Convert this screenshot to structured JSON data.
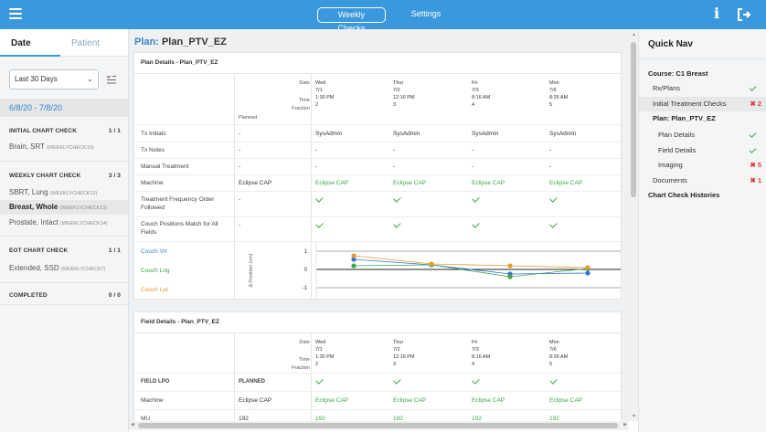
{
  "topbar": {
    "tabs": [
      "Weekly Checks",
      "Settings"
    ]
  },
  "left": {
    "tabs": {
      "date": "Date",
      "patient": "Patient"
    },
    "range_select": "Last 30 Days",
    "date_range": "6/8/20 - 7/8/20",
    "groups": [
      {
        "title": "INITIAL CHART CHECK",
        "count": "1 / 1",
        "items": [
          {
            "name": "Brain, SRT",
            "code": "(WEEKLYCHECK15)"
          }
        ]
      },
      {
        "title": "WEEKLY CHART CHECK",
        "count": "3 / 3",
        "items": [
          {
            "name": "SBRT, Lung",
            "code": "(WEEKLYCHECK12)"
          },
          {
            "name": "Breast, Whole",
            "code": "(WEEKLYCHECK13)"
          },
          {
            "name": "Prostate, Intact",
            "code": "(WEEKLYCHECK14)"
          }
        ]
      },
      {
        "title": "EOT CHART CHECK",
        "count": "1 / 1",
        "items": [
          {
            "name": "Extended, SSD",
            "code": "(WEEKLYCHECK7)"
          }
        ]
      },
      {
        "title": "COMPLETED",
        "count": "0 / 0",
        "items": []
      }
    ]
  },
  "plan": {
    "label": "Plan:",
    "name": "Plan_PTV_EZ"
  },
  "plan_details": {
    "title": "Plan Details - Plan_PTV_EZ",
    "header_labels": [
      "Date",
      "Time",
      "Fraction"
    ],
    "planned_label": "Planned",
    "columns": [
      {
        "day": "Wed",
        "date": "7/1",
        "time": "1:30 PM",
        "fraction": "2"
      },
      {
        "day": "Thur",
        "date": "7/2",
        "time": "12:16 PM",
        "fraction": "3"
      },
      {
        "day": "Fri",
        "date": "7/3",
        "time": "8:16 AM",
        "fraction": "4"
      },
      {
        "day": "Mon",
        "date": "7/6",
        "time": "8:26 AM",
        "fraction": "5"
      }
    ],
    "rows": [
      {
        "label": "Tx Initials",
        "planned": "-",
        "values": [
          "SysAdmin",
          "SysAdmin",
          "SysAdmin",
          "SysAdmin"
        ]
      },
      {
        "label": "Tx Notes",
        "planned": "-",
        "values": [
          "-",
          "-",
          "-",
          "-"
        ]
      },
      {
        "label": "Manual Treatment",
        "planned": "-",
        "values": [
          "-",
          "-",
          "-",
          "-"
        ]
      },
      {
        "label": "Machine",
        "planned": "Eclipse CAP",
        "values": [
          "Eclipse CAP",
          "Eclipse CAP",
          "Eclipse CAP",
          "Eclipse CAP"
        ]
      },
      {
        "label": "Treatment Frequency Order Followed",
        "planned": "-",
        "values": [
          "check",
          "check",
          "check",
          "check"
        ]
      },
      {
        "label": "Couch Positions Match for All Fields",
        "planned": "-",
        "values": [
          "check",
          "check",
          "check",
          "check"
        ]
      }
    ],
    "couch_chart": {
      "ylabel": "Δ Position (cm)",
      "series_labels": [
        "Couch Vrt",
        "Couch Lng",
        "Couch Lat"
      ]
    }
  },
  "chart_data": {
    "type": "line",
    "x": [
      "7/1",
      "7/2",
      "7/3",
      "7/6"
    ],
    "ylim": [
      -1,
      1
    ],
    "yticks": [
      "1",
      "0",
      "-1"
    ],
    "series": [
      {
        "name": "Couch Vrt",
        "color": "#3a6fd8",
        "values": [
          0.55,
          0.25,
          -0.25,
          -0.2
        ]
      },
      {
        "name": "Couch Lng",
        "color": "#3aa54a",
        "values": [
          0.2,
          0.25,
          -0.4,
          0.05
        ]
      },
      {
        "name": "Couch Lat",
        "color": "#e49a2e",
        "values": [
          0.75,
          0.3,
          0.2,
          0.1
        ]
      }
    ]
  },
  "field_details": {
    "title": "Field Details - Plan_PTV_EZ",
    "field_label": "FIELD LPO",
    "planned_label": "PLANNED",
    "field_checks": [
      "check",
      "check",
      "check",
      "check"
    ],
    "rows": [
      {
        "label": "Machine",
        "planned": "Eclipse CAP",
        "values": [
          "Eclipse CAP",
          "Eclipse CAP",
          "Eclipse CAP",
          "Eclipse CAP"
        ]
      },
      {
        "label": "MU",
        "planned": "192",
        "values": [
          "192",
          "192",
          "192",
          "192"
        ]
      }
    ]
  },
  "quick_nav": {
    "title": "Quick Nav",
    "course": "Course: C1 Breast",
    "items": [
      {
        "label": "Rx/Plans",
        "status": "ok"
      },
      {
        "label": "Initial Treatment Checks",
        "status": "err",
        "count": "2"
      }
    ],
    "plan_label": "Plan: Plan_PTV_EZ",
    "plan_items": [
      {
        "label": "Plan Details",
        "status": "ok"
      },
      {
        "label": "Field Details",
        "status": "ok"
      },
      {
        "label": "Imaging",
        "status": "err",
        "count": "5"
      }
    ],
    "documents": {
      "label": "Documents",
      "status": "err",
      "count": "1"
    },
    "histories": "Chart Check Histories"
  }
}
